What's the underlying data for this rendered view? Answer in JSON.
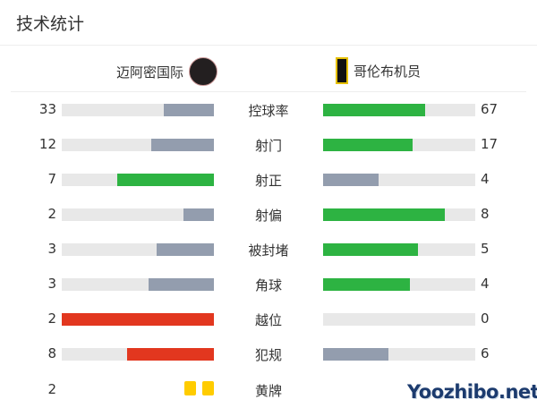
{
  "title": "技术统计",
  "teams": {
    "home": "迈阿密国际",
    "away": "哥伦布机员"
  },
  "colors": {
    "neutral": "#939dae",
    "good": "#2db342",
    "bad": "#e2371f",
    "track": "#e8e8e8",
    "card": "#ffcc00"
  },
  "stats": [
    {
      "label": "控球率",
      "home": 33,
      "away": 67,
      "home_color": "neutral",
      "away_color": "good"
    },
    {
      "label": "射门",
      "home": 12,
      "away": 17,
      "home_color": "neutral",
      "away_color": "good"
    },
    {
      "label": "射正",
      "home": 7,
      "away": 4,
      "home_color": "good",
      "away_color": "neutral"
    },
    {
      "label": "射偏",
      "home": 2,
      "away": 8,
      "home_color": "neutral",
      "away_color": "good"
    },
    {
      "label": "被封堵",
      "home": 3,
      "away": 5,
      "home_color": "neutral",
      "away_color": "good"
    },
    {
      "label": "角球",
      "home": 3,
      "away": 4,
      "home_color": "neutral",
      "away_color": "good"
    },
    {
      "label": "越位",
      "home": 2,
      "away": 0,
      "home_color": "bad",
      "away_color": "neutral"
    },
    {
      "label": "犯规",
      "home": 8,
      "away": 6,
      "home_color": "bad",
      "away_color": "neutral"
    }
  ],
  "yellow_cards": {
    "label": "黄牌",
    "home": 2
  },
  "watermark": "Yoozhibo.net"
}
